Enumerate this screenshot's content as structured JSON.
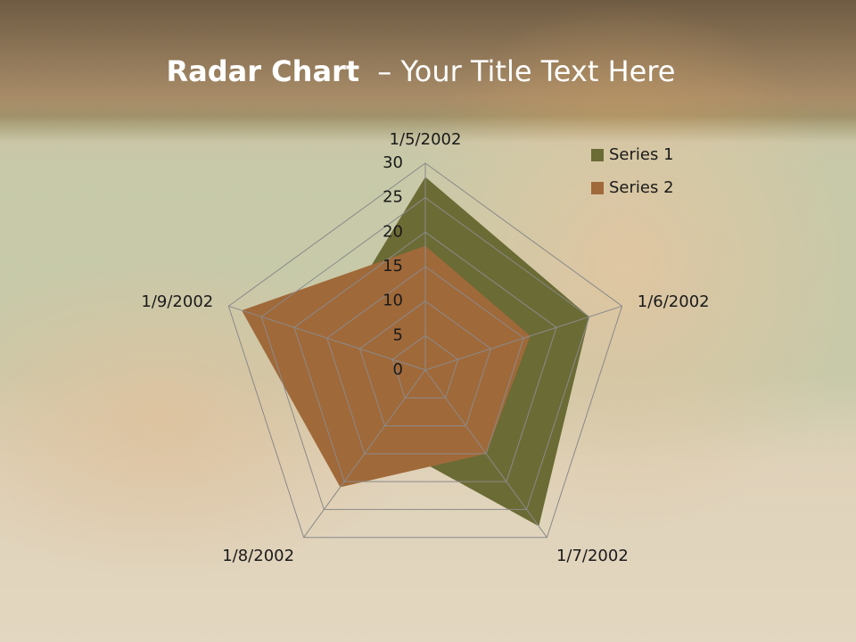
{
  "chart_data": {
    "type": "radar",
    "title_parts": [
      "Radar Chart",
      "– Your Title Text Here"
    ],
    "categories": [
      "1/5/2002",
      "1/6/2002",
      "1/7/2002",
      "1/8/2002",
      "1/9/2002"
    ],
    "series": [
      {
        "name": "Series 1",
        "color": "#6b6b35",
        "values": [
          28,
          25,
          28,
          12,
          15
        ]
      },
      {
        "name": "Series 2",
        "color": "#a0693a",
        "values": [
          18,
          16,
          15,
          21,
          28
        ]
      }
    ],
    "rlim": [
      0,
      30
    ],
    "rticks": [
      0,
      5,
      10,
      15,
      20,
      25,
      30
    ],
    "grid": true,
    "legend": "top-right"
  }
}
